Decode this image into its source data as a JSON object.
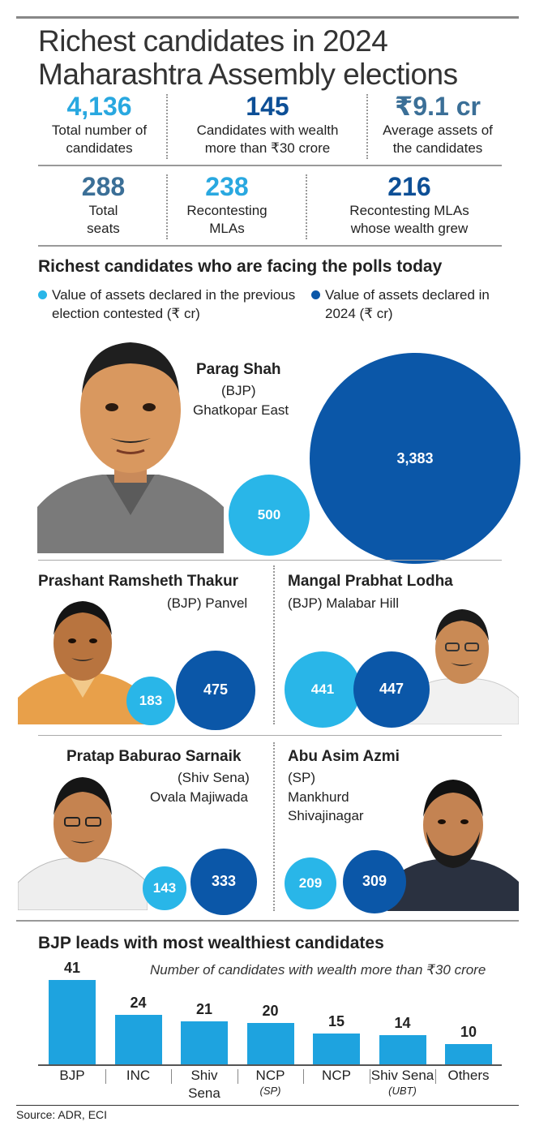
{
  "title": "Richest candidates in 2024 Maharashtra Assembly elections",
  "stats_row1": [
    {
      "value": "4,136",
      "label": "Total number of candidates",
      "color": "#29a8e0"
    },
    {
      "value": "145",
      "label": "Candidates with wealth more than ₹30 crore",
      "color": "#0d4f96"
    },
    {
      "value": "₹9.1 cr",
      "label": "Average assets of the candidates",
      "color": "#3b6f97"
    }
  ],
  "stats_row2": [
    {
      "value": "288",
      "label": "Total seats",
      "color": "#3b6f97"
    },
    {
      "value": "238",
      "label": "Recontesting MLAs",
      "color": "#29a8e0"
    },
    {
      "value": "216",
      "label": "Recontesting MLAs whose wealth grew",
      "color": "#0d4f96"
    }
  ],
  "section1_title": "Richest candidates who are facing the polls today",
  "legend": {
    "previous": "Value of assets declared in the previous election contested (₹ cr)",
    "current": "Value of assets declared in 2024 (₹ cr)",
    "previous_color": "#29b6e8",
    "current_color": "#0b57a8"
  },
  "candidates": [
    {
      "name": "Parag Shah",
      "party": "(BJP)",
      "constituency": "Ghatkopar East",
      "previous": 500,
      "current": 3383,
      "previous_label": "500",
      "current_label": "3,383"
    },
    {
      "name": "Prashant Ramsheth Thakur",
      "party": "(BJP)",
      "constituency": "Panvel",
      "previous": 183,
      "current": 475,
      "previous_label": "183",
      "current_label": "475"
    },
    {
      "name": "Mangal Prabhat Lodha",
      "party": "(BJP)",
      "constituency": "Malabar Hill",
      "previous": 441,
      "current": 447,
      "previous_label": "441",
      "current_label": "447"
    },
    {
      "name": "Pratap Baburao Sarnaik",
      "party": "(Shiv Sena)",
      "constituency": "Ovala Majiwada",
      "previous": 143,
      "current": 333,
      "previous_label": "143",
      "current_label": "333"
    },
    {
      "name": "Abu Asim Azmi",
      "party": "(SP)",
      "constituency": "Mankhurd Shivajinagar",
      "previous": 209,
      "current": 309,
      "previous_label": "209",
      "current_label": "309"
    }
  ],
  "section2_title": "BJP leads with most wealthiest candidates",
  "chart_data": {
    "type": "bar",
    "title": "BJP leads with most wealthiest candidates",
    "subtitle": "Number of candidates with wealth more than ₹30 crore",
    "categories": [
      {
        "label": "BJP",
        "sub": ""
      },
      {
        "label": "INC",
        "sub": ""
      },
      {
        "label": "Shiv Sena",
        "sub": ""
      },
      {
        "label": "NCP",
        "sub": "(SP)"
      },
      {
        "label": "NCP",
        "sub": ""
      },
      {
        "label": "Shiv Sena",
        "sub": "(UBT)"
      },
      {
        "label": "Others",
        "sub": ""
      }
    ],
    "values": [
      41,
      24,
      21,
      20,
      15,
      14,
      10
    ],
    "bar_color": "#1ea3df",
    "grid": false,
    "legend": "none"
  },
  "source": "Source: ADR, ECI"
}
